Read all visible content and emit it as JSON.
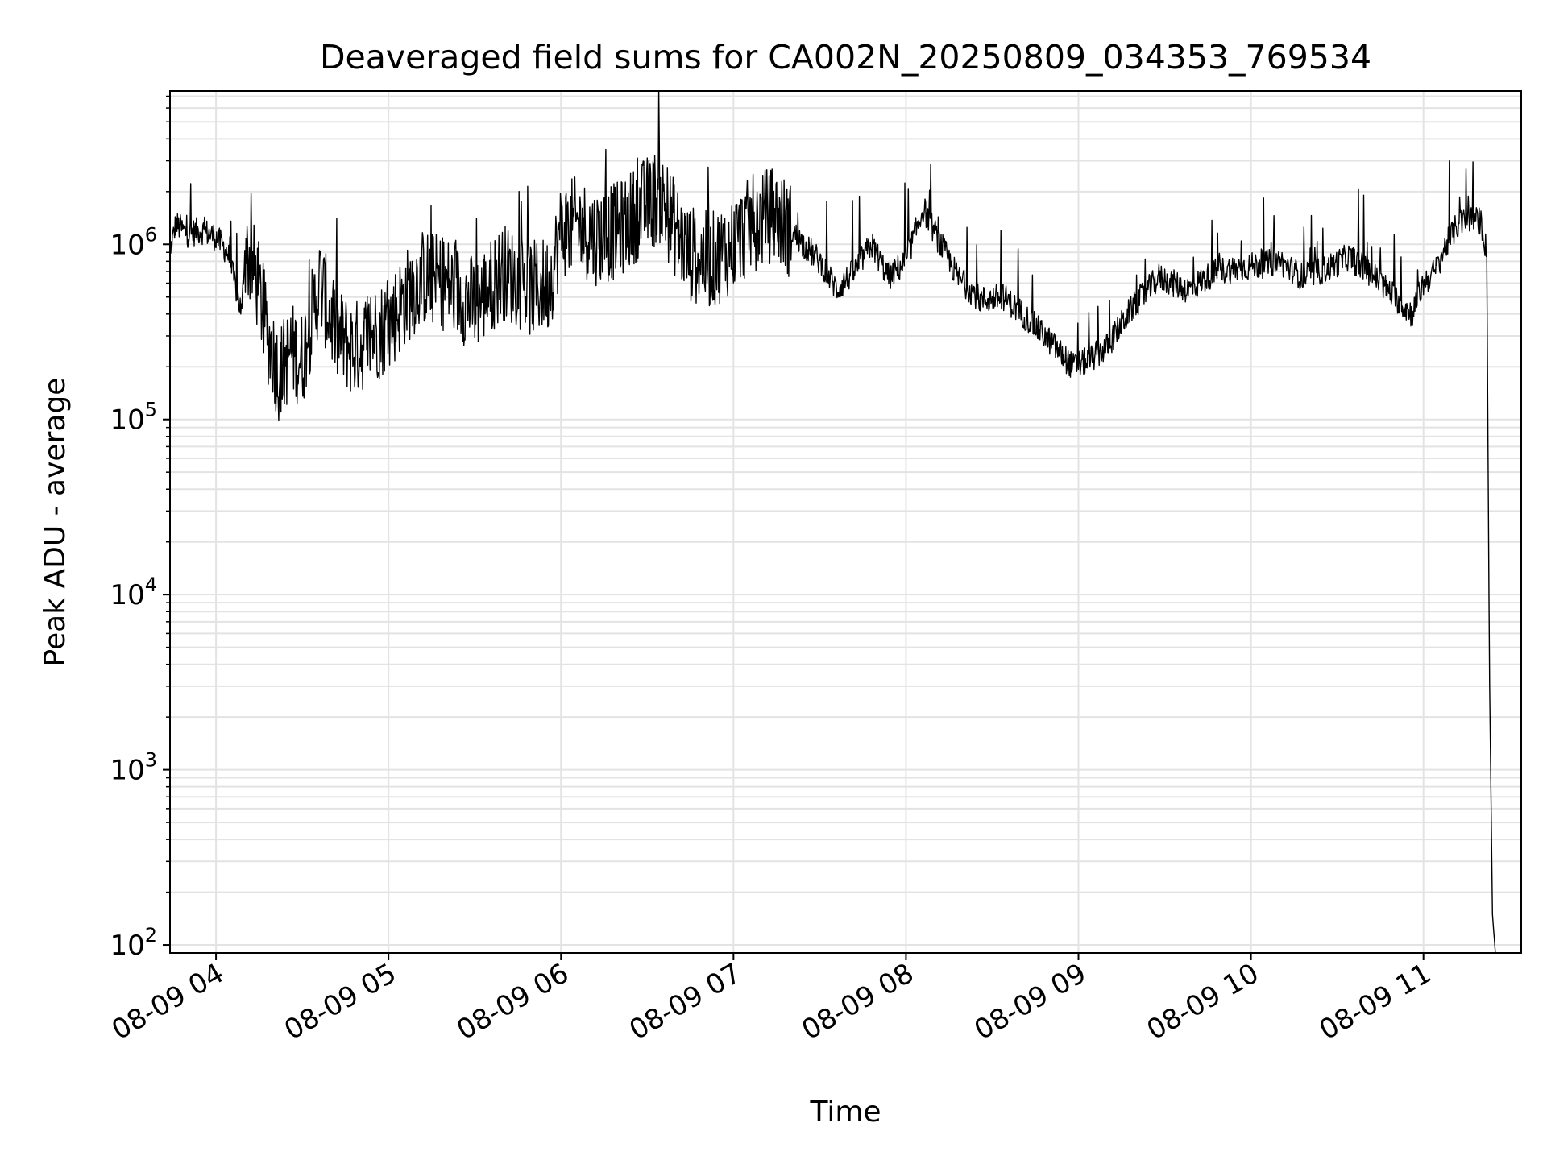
{
  "chart_data": {
    "type": "line",
    "title": "Deaveraged field sums for CA002N_20250809_034353_769534",
    "xlabel": "Time",
    "ylabel": "Peak ADU - average",
    "yscale": "log",
    "ylim": [
      90,
      7500000
    ],
    "xlim": [
      "2025-08-09 03:44",
      "2025-08-09 11:34"
    ],
    "grid": true,
    "line_color": "#000000",
    "grid_color": "#e3e3e3",
    "x_ticks": [
      {
        "value": "2025-08-09 04:00",
        "label": "08-09 04"
      },
      {
        "value": "2025-08-09 05:00",
        "label": "08-09 05"
      },
      {
        "value": "2025-08-09 06:00",
        "label": "08-09 06"
      },
      {
        "value": "2025-08-09 07:00",
        "label": "08-09 07"
      },
      {
        "value": "2025-08-09 08:00",
        "label": "08-09 08"
      },
      {
        "value": "2025-08-09 09:00",
        "label": "08-09 09"
      },
      {
        "value": "2025-08-09 10:00",
        "label": "08-09 10"
      },
      {
        "value": "2025-08-09 11:00",
        "label": "08-09 11"
      }
    ],
    "y_ticks": [
      {
        "value": 100,
        "base": "10",
        "exp": "2"
      },
      {
        "value": 1000,
        "base": "10",
        "exp": "3"
      },
      {
        "value": 10000,
        "base": "10",
        "exp": "4"
      },
      {
        "value": 100000,
        "base": "10",
        "exp": "5"
      },
      {
        "value": 1000000,
        "base": "10",
        "exp": "6"
      }
    ],
    "series": [
      {
        "x": [
          "2025-08-09 03:44",
          "2025-08-09 03:46",
          "2025-08-09 03:50",
          "2025-08-09 03:55",
          "2025-08-09 04:00",
          "2025-08-09 04:04",
          "2025-08-09 04:06",
          "2025-08-09 04:09",
          "2025-08-09 04:10",
          "2025-08-09 04:14",
          "2025-08-09 04:18",
          "2025-08-09 04:22",
          "2025-08-09 04:26",
          "2025-08-09 04:30",
          "2025-08-09 04:36",
          "2025-08-09 04:42",
          "2025-08-09 04:48",
          "2025-08-09 04:54",
          "2025-08-09 05:00",
          "2025-08-09 05:06",
          "2025-08-09 05:12",
          "2025-08-09 05:20",
          "2025-08-09 05:30",
          "2025-08-09 05:40",
          "2025-08-09 05:50",
          "2025-08-09 05:56",
          "2025-08-09 06:00",
          "2025-08-09 06:06",
          "2025-08-09 06:12",
          "2025-08-09 06:20",
          "2025-08-09 06:28",
          "2025-08-09 06:34",
          "2025-08-09 06:38",
          "2025-08-09 06:44",
          "2025-08-09 06:52",
          "2025-08-09 07:00",
          "2025-08-09 07:06",
          "2025-08-09 07:14",
          "2025-08-09 07:22",
          "2025-08-09 07:30",
          "2025-08-09 07:36",
          "2025-08-09 07:42",
          "2025-08-09 07:48",
          "2025-08-09 07:54",
          "2025-08-09 08:00",
          "2025-08-09 08:06",
          "2025-08-09 08:12",
          "2025-08-09 08:18",
          "2025-08-09 08:26",
          "2025-08-09 08:34",
          "2025-08-09 08:42",
          "2025-08-09 08:50",
          "2025-08-09 08:58",
          "2025-08-09 09:04",
          "2025-08-09 09:10",
          "2025-08-09 09:18",
          "2025-08-09 09:28",
          "2025-08-09 09:38",
          "2025-08-09 09:48",
          "2025-08-09 10:00",
          "2025-08-09 10:10",
          "2025-08-09 10:18",
          "2025-08-09 10:26",
          "2025-08-09 10:34",
          "2025-08-09 10:42",
          "2025-08-09 10:50",
          "2025-08-09 10:56",
          "2025-08-09 11:00",
          "2025-08-09 11:04",
          "2025-08-09 11:08",
          "2025-08-09 11:12",
          "2025-08-09 11:16",
          "2025-08-09 11:20",
          "2025-08-09 11:22",
          "2025-08-09 11:23",
          "2025-08-09 11:24",
          "2025-08-09 11:25"
        ],
        "y": [
          900000,
          1300000,
          1150000,
          1200000,
          1100000,
          900000,
          650000,
          400000,
          950000,
          650000,
          300000,
          180000,
          250000,
          220000,
          600000,
          300000,
          250000,
          300000,
          350000,
          500000,
          650000,
          600000,
          450000,
          700000,
          550000,
          600000,
          1200000,
          1300000,
          1100000,
          1200000,
          1600000,
          1900000,
          1400000,
          900000,
          800000,
          1000000,
          1300000,
          1500000,
          1100000,
          800000,
          550000,
          700000,
          1000000,
          650000,
          800000,
          1600000,
          1000000,
          650000,
          480000,
          500000,
          380000,
          280000,
          200000,
          220000,
          260000,
          420000,
          650000,
          550000,
          700000,
          750000,
          800000,
          650000,
          720000,
          850000,
          680000,
          500000,
          400000,
          600000,
          700000,
          1000000,
          1300000,
          1400000,
          1350000,
          900000,
          3000,
          150,
          90
        ]
      }
    ]
  }
}
